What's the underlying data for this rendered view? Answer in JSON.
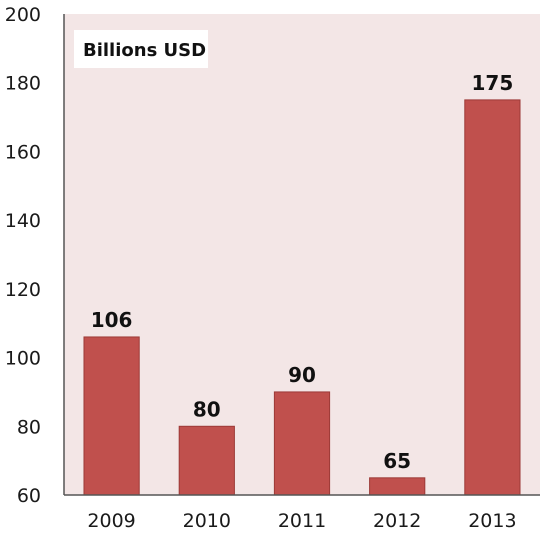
{
  "chart_data": {
    "type": "bar",
    "title": "",
    "unit_label": "Billions USD",
    "xlabel": "",
    "ylabel": "",
    "categories": [
      "2009",
      "2010",
      "2011",
      "2012",
      "2013"
    ],
    "values": [
      106,
      80,
      90,
      65,
      175
    ],
    "data_labels": [
      "106",
      "80",
      "90",
      "65",
      "175"
    ],
    "ylim": [
      60,
      200
    ],
    "yticks": [
      60,
      80,
      100,
      120,
      140,
      160,
      180,
      200
    ],
    "grid": false,
    "legend": "none",
    "colors": {
      "plot_background": "#f3e6e6",
      "bar": "#c0504d",
      "bar_edge": "#9c3a37",
      "axis": "#555555",
      "unit_box": "#ffffff"
    }
  }
}
